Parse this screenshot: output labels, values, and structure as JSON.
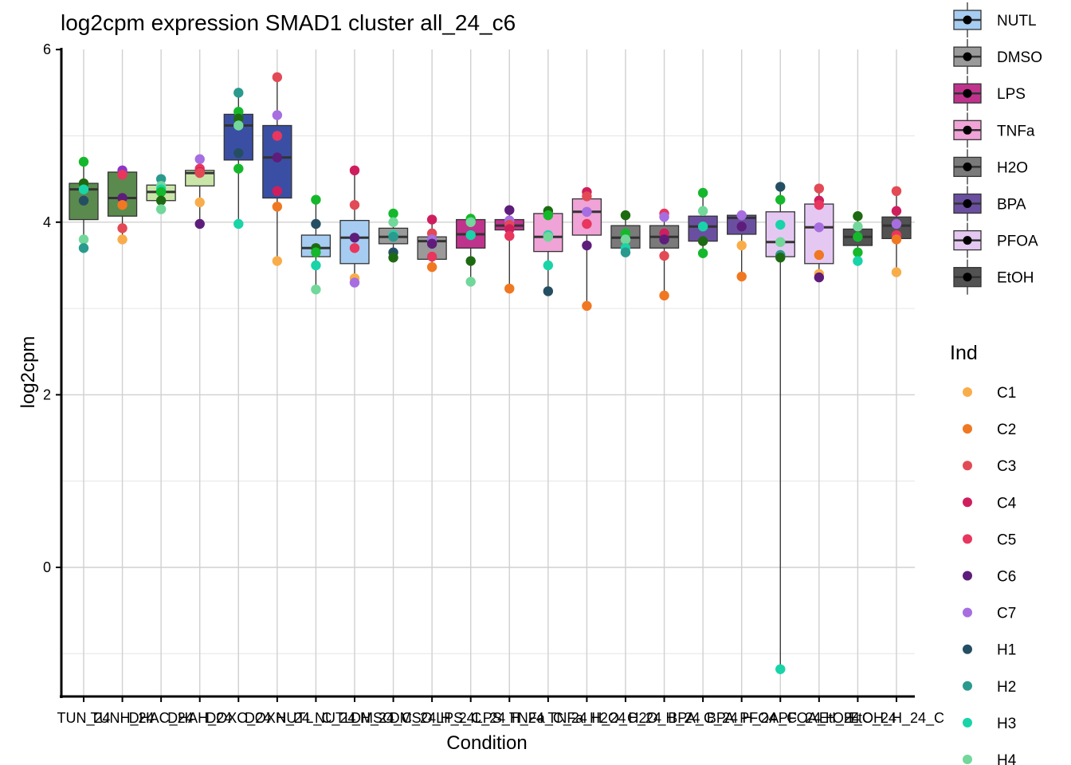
{
  "chart_data": {
    "type": "boxplot",
    "title": "log2cpm expression SMAD1 cluster all_24_c6",
    "xlabel": "Condition",
    "ylabel": "log2cpm",
    "ylim": [
      -1.5,
      6.05
    ],
    "yticks": [
      0,
      2,
      4,
      6
    ],
    "grid": true,
    "categories": [
      "TUN_24",
      "TUNH_24",
      "DHAC_24",
      "DHAH_24",
      "DOXC_24",
      "DOXH_24",
      "NUTL_C_24",
      "NUTL_H_24",
      "DMSO_C_24",
      "DMSO_H_24",
      "LPS_C_24",
      "LPS_H_24",
      "TNFa_C_24",
      "TNFa_H_24",
      "H2O_C_24",
      "H2O_H_24",
      "BPA_C_24",
      "BPA_H_24",
      "PFOA_C_24",
      "PFOA_H_24",
      "EtOH_C_24",
      "EtOH_H_24_C"
    ],
    "boxes": [
      {
        "q1": 4.03,
        "median": 4.38,
        "q3": 4.45,
        "min": 3.7,
        "max": 4.7,
        "fill": "#5b8a4e"
      },
      {
        "q1": 4.07,
        "median": 4.28,
        "q3": 4.58,
        "min": 3.8,
        "max": 4.6,
        "fill": "#5b8a4e"
      },
      {
        "q1": 4.25,
        "median": 4.35,
        "q3": 4.43,
        "min": 4.15,
        "max": 4.5,
        "fill": "#c9e6a8"
      },
      {
        "q1": 4.42,
        "median": 4.57,
        "q3": 4.6,
        "min": 3.98,
        "max": 4.73,
        "fill": "#c9e6a8"
      },
      {
        "q1": 4.72,
        "median": 5.12,
        "q3": 5.25,
        "min": 3.98,
        "max": 5.5,
        "fill": "#3a4fa3"
      },
      {
        "q1": 4.28,
        "median": 4.75,
        "q3": 5.12,
        "min": 3.55,
        "max": 5.68,
        "fill": "#3a4fa3"
      },
      {
        "q1": 3.6,
        "median": 3.7,
        "q3": 3.85,
        "min": 3.22,
        "max": 4.26,
        "fill": "#a6ccf2"
      },
      {
        "q1": 3.52,
        "median": 3.82,
        "q3": 4.02,
        "min": 3.3,
        "max": 4.6,
        "fill": "#a6ccf2"
      },
      {
        "q1": 3.75,
        "median": 3.83,
        "q3": 3.93,
        "min": 3.59,
        "max": 4.1,
        "fill": "#9a9a9a"
      },
      {
        "q1": 3.57,
        "median": 3.78,
        "q3": 3.83,
        "min": 3.48,
        "max": 4.03,
        "fill": "#9a9a9a"
      },
      {
        "q1": 3.7,
        "median": 3.86,
        "q3": 4.03,
        "min": 3.31,
        "max": 4.04,
        "fill": "#c0338d"
      },
      {
        "q1": 3.91,
        "median": 3.96,
        "q3": 4.03,
        "min": 3.23,
        "max": 4.14,
        "fill": "#c0338d"
      },
      {
        "q1": 3.66,
        "median": 3.83,
        "q3": 4.1,
        "min": 3.2,
        "max": 4.13,
        "fill": "#f0a3d6"
      },
      {
        "q1": 3.85,
        "median": 4.12,
        "q3": 4.27,
        "min": 3.03,
        "max": 4.35,
        "fill": "#f0a3d6"
      },
      {
        "q1": 3.7,
        "median": 3.82,
        "q3": 3.96,
        "min": 3.65,
        "max": 4.08,
        "fill": "#7a7a7a"
      },
      {
        "q1": 3.7,
        "median": 3.83,
        "q3": 3.96,
        "min": 3.15,
        "max": 4.1,
        "fill": "#7a7a7a"
      },
      {
        "q1": 3.78,
        "median": 3.95,
        "q3": 4.07,
        "min": 3.64,
        "max": 4.34,
        "fill": "#6a4fa0"
      },
      {
        "q1": 3.86,
        "median": 4.05,
        "q3": 4.08,
        "min": 3.37,
        "max": 4.08,
        "fill": "#6a4fa0"
      },
      {
        "q1": 3.6,
        "median": 3.77,
        "q3": 4.12,
        "min": -1.18,
        "max": 4.41,
        "fill": "#e4c8f2"
      },
      {
        "q1": 3.52,
        "median": 3.94,
        "q3": 4.21,
        "min": 3.36,
        "max": 4.39,
        "fill": "#e4c8f2"
      },
      {
        "q1": 3.73,
        "median": 3.83,
        "q3": 3.92,
        "min": 3.55,
        "max": 4.07,
        "fill": "#525252"
      },
      {
        "q1": 3.81,
        "median": 3.96,
        "q3": 4.06,
        "min": 3.42,
        "max": 4.36,
        "fill": "#525252"
      }
    ],
    "points": [
      [
        [
          4.7,
          "#15b82b"
        ],
        [
          4.45,
          "#1e6a12"
        ],
        [
          4.38,
          "#18d4a8"
        ],
        [
          4.25,
          "#244f63"
        ],
        [
          3.8,
          "#72d79a"
        ],
        [
          3.7,
          "#2a9a8e"
        ]
      ],
      [
        [
          4.6,
          "#8b35c9"
        ],
        [
          4.55,
          "#e8365e"
        ],
        [
          4.28,
          "#5e1d7a"
        ],
        [
          4.2,
          "#f07822"
        ],
        [
          3.93,
          "#e24a55"
        ],
        [
          3.8,
          "#f9ad4a"
        ]
      ],
      [
        [
          4.5,
          "#2a9a8e"
        ],
        [
          4.42,
          "#72d79a"
        ],
        [
          4.38,
          "#18d4a8"
        ],
        [
          4.35,
          "#15b82b"
        ],
        [
          4.25,
          "#1e6a12"
        ],
        [
          4.15,
          "#72d79a"
        ]
      ],
      [
        [
          4.73,
          "#a66ee0"
        ],
        [
          4.62,
          "#e8365e"
        ],
        [
          4.58,
          "#cf1e5e"
        ],
        [
          4.57,
          "#e24a55"
        ],
        [
          4.23,
          "#f9ad4a"
        ],
        [
          3.98,
          "#5e1d7a"
        ]
      ],
      [
        [
          5.5,
          "#2a9a8e"
        ],
        [
          5.28,
          "#15b82b"
        ],
        [
          5.2,
          "#1e6a12"
        ],
        [
          5.12,
          "#72d79a"
        ],
        [
          4.8,
          "#244f63"
        ],
        [
          4.62,
          "#15b82b"
        ],
        [
          3.98,
          "#18d4a8"
        ]
      ],
      [
        [
          5.68,
          "#e24a55"
        ],
        [
          5.24,
          "#a66ee0"
        ],
        [
          5.0,
          "#e8365e"
        ],
        [
          4.75,
          "#5e1d7a"
        ],
        [
          4.36,
          "#cf1e5e"
        ],
        [
          4.18,
          "#f07822"
        ],
        [
          3.55,
          "#f9ad4a"
        ]
      ],
      [
        [
          4.26,
          "#15b82b"
        ],
        [
          3.98,
          "#244f63"
        ],
        [
          3.7,
          "#1e6a12"
        ],
        [
          3.65,
          "#15b82b"
        ],
        [
          3.5,
          "#18d4a8"
        ],
        [
          3.22,
          "#72d79a"
        ]
      ],
      [
        [
          4.6,
          "#cf1e5e"
        ],
        [
          4.2,
          "#e24a55"
        ],
        [
          3.82,
          "#5e1d7a"
        ],
        [
          3.7,
          "#e8365e"
        ],
        [
          3.35,
          "#f9ad4a"
        ],
        [
          3.3,
          "#a66ee0"
        ]
      ],
      [
        [
          4.1,
          "#15b82b"
        ],
        [
          4.0,
          "#72d79a"
        ],
        [
          3.85,
          "#18d4a8"
        ],
        [
          3.83,
          "#2a9a8e"
        ],
        [
          3.65,
          "#244f63"
        ],
        [
          3.59,
          "#1e6a12"
        ]
      ],
      [
        [
          4.03,
          "#cf1e5e"
        ],
        [
          3.87,
          "#e24a55"
        ],
        [
          3.8,
          "#a66ee0"
        ],
        [
          3.75,
          "#5e1d7a"
        ],
        [
          3.6,
          "#e8365e"
        ],
        [
          3.48,
          "#f07822"
        ]
      ],
      [
        [
          4.04,
          "#15b82b"
        ],
        [
          4.0,
          "#72d79a"
        ],
        [
          3.85,
          "#18d4a8"
        ],
        [
          3.55,
          "#1e6a12"
        ],
        [
          3.31,
          "#72d79a"
        ]
      ],
      [
        [
          4.14,
          "#5e1d7a"
        ],
        [
          4.02,
          "#a66ee0"
        ],
        [
          3.97,
          "#e24a55"
        ],
        [
          3.92,
          "#cf1e5e"
        ],
        [
          3.84,
          "#e8365e"
        ],
        [
          3.23,
          "#f07822"
        ]
      ],
      [
        [
          4.13,
          "#1e6a12"
        ],
        [
          4.08,
          "#15b82b"
        ],
        [
          3.85,
          "#18d4a8"
        ],
        [
          3.83,
          "#72d79a"
        ],
        [
          3.5,
          "#18d4a8"
        ],
        [
          3.2,
          "#244f63"
        ]
      ],
      [
        [
          4.35,
          "#cf1e5e"
        ],
        [
          4.3,
          "#e24a55"
        ],
        [
          4.12,
          "#a66ee0"
        ],
        [
          3.98,
          "#e8365e"
        ],
        [
          3.73,
          "#5e1d7a"
        ],
        [
          3.03,
          "#f07822"
        ]
      ],
      [
        [
          4.08,
          "#1e6a12"
        ],
        [
          3.87,
          "#15b82b"
        ],
        [
          3.8,
          "#72d79a"
        ],
        [
          3.7,
          "#18d4a8"
        ],
        [
          3.65,
          "#2a9a8e"
        ]
      ],
      [
        [
          4.1,
          "#e8365e"
        ],
        [
          4.06,
          "#a66ee0"
        ],
        [
          3.87,
          "#cf1e5e"
        ],
        [
          3.8,
          "#5e1d7a"
        ],
        [
          3.61,
          "#e24a55"
        ],
        [
          3.15,
          "#f07822"
        ]
      ],
      [
        [
          4.34,
          "#15b82b"
        ],
        [
          4.13,
          "#72d79a"
        ],
        [
          3.95,
          "#18d4a8"
        ],
        [
          3.78,
          "#1e6a12"
        ],
        [
          3.64,
          "#15b82b"
        ]
      ],
      [
        [
          4.08,
          "#a66ee0"
        ],
        [
          3.95,
          "#5e1d7a"
        ],
        [
          3.73,
          "#f9ad4a"
        ],
        [
          3.37,
          "#f07822"
        ]
      ],
      [
        [
          4.41,
          "#244f63"
        ],
        [
          4.26,
          "#15b82b"
        ],
        [
          3.97,
          "#18d4a8"
        ],
        [
          3.77,
          "#72d79a"
        ],
        [
          3.62,
          "#2a9a8e"
        ],
        [
          3.59,
          "#1e6a12"
        ],
        [
          -1.18,
          "#18d4a8"
        ]
      ],
      [
        [
          4.39,
          "#e24a55"
        ],
        [
          4.25,
          "#cf1e5e"
        ],
        [
          4.2,
          "#e8365e"
        ],
        [
          3.94,
          "#a66ee0"
        ],
        [
          3.62,
          "#f07822"
        ],
        [
          3.4,
          "#f9ad4a"
        ],
        [
          3.36,
          "#5e1d7a"
        ]
      ],
      [
        [
          4.07,
          "#1e6a12"
        ],
        [
          3.95,
          "#72d79a"
        ],
        [
          3.83,
          "#15b82b"
        ],
        [
          3.65,
          "#15b82b"
        ],
        [
          3.55,
          "#18d4a8"
        ]
      ],
      [
        [
          4.36,
          "#e24a55"
        ],
        [
          4.13,
          "#cf1e5e"
        ],
        [
          3.98,
          "#a66ee0"
        ],
        [
          3.85,
          "#e8365e"
        ],
        [
          3.8,
          "#f07822"
        ],
        [
          3.42,
          "#f9ad4a"
        ]
      ]
    ],
    "legend_treatment": [
      {
        "label": "NUTL",
        "fill": "#a6ccf2"
      },
      {
        "label": "DMSO",
        "fill": "#9a9a9a"
      },
      {
        "label": "LPS",
        "fill": "#c0338d"
      },
      {
        "label": "TNFa",
        "fill": "#f0a3d6"
      },
      {
        "label": "H2O",
        "fill": "#7a7a7a"
      },
      {
        "label": "BPA",
        "fill": "#6a4fa0"
      },
      {
        "label": "PFOA",
        "fill": "#e4c8f2"
      },
      {
        "label": "EtOH",
        "fill": "#525252"
      }
    ],
    "legend_ind_title": "Ind",
    "legend_ind": [
      {
        "label": "C1",
        "color": "#f9ad4a"
      },
      {
        "label": "C2",
        "color": "#f07822"
      },
      {
        "label": "C3",
        "color": "#e24a55"
      },
      {
        "label": "C4",
        "color": "#cf1e5e"
      },
      {
        "label": "C5",
        "color": "#e8365e"
      },
      {
        "label": "C6",
        "color": "#5e1d7a"
      },
      {
        "label": "C7",
        "color": "#a66ee0"
      },
      {
        "label": "H1",
        "color": "#244f63"
      },
      {
        "label": "H2",
        "color": "#2a9a8e"
      },
      {
        "label": "H3",
        "color": "#18d4a8"
      },
      {
        "label": "H4",
        "color": "#72d79a"
      }
    ]
  }
}
